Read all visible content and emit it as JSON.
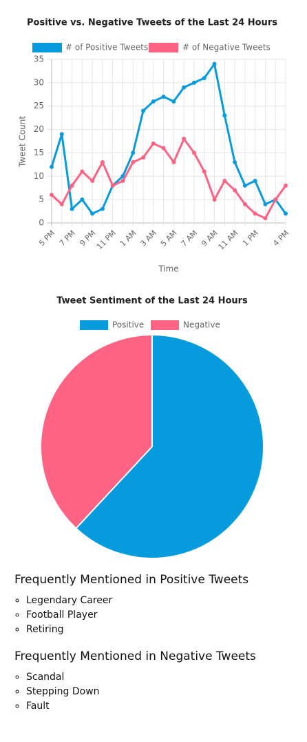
{
  "chart_data": [
    {
      "type": "line",
      "title": "Positive vs. Negative Tweets of the Last 24 Hours",
      "x_label": "Time",
      "y_label": "Tweet Count",
      "categories": [
        "5 PM",
        null,
        "7 PM",
        null,
        "9 PM",
        null,
        "11 PM",
        null,
        "1 AM",
        null,
        "3 AM",
        null,
        "5 AM",
        null,
        "7 AM",
        null,
        "9 AM",
        null,
        "11 AM",
        null,
        "1 PM",
        null,
        null,
        "4 PM"
      ],
      "series": [
        {
          "name": "# of Positive Tweets",
          "color": "#059bdc",
          "values": [
            12,
            19,
            3,
            5,
            2,
            3,
            8,
            10,
            15,
            24,
            26,
            27,
            26,
            29,
            30,
            31,
            34,
            23,
            13,
            8,
            9,
            4,
            5,
            2
          ]
        },
        {
          "name": "# of Negative Tweets",
          "color": "#ff6384",
          "values": [
            6,
            4,
            8,
            11,
            9,
            13,
            8,
            9,
            13,
            14,
            17,
            16,
            13,
            18,
            15,
            11,
            5,
            9,
            7,
            4,
            2,
            1,
            5,
            8
          ]
        }
      ],
      "ylim": [
        0,
        35
      ],
      "yticks": [
        0,
        5,
        10,
        15,
        20,
        25,
        30,
        35
      ],
      "grid": true,
      "legend": "top"
    },
    {
      "type": "pie",
      "title": "Tweet Sentiment of the Last 24 Hours",
      "categories": [
        "Positive",
        "Negative"
      ],
      "values": [
        368,
        226
      ],
      "colors": [
        "#059bdc",
        "#ff6384"
      ],
      "legend": "top"
    }
  ],
  "lists": [
    {
      "heading": "Frequently Mentioned in Positive Tweets",
      "items": [
        "Legendary Career",
        "Football Player",
        "Retiring"
      ]
    },
    {
      "heading": "Frequently Mentioned in Negative Tweets",
      "items": [
        "Scandal",
        "Stepping Down",
        "Fault"
      ]
    }
  ]
}
